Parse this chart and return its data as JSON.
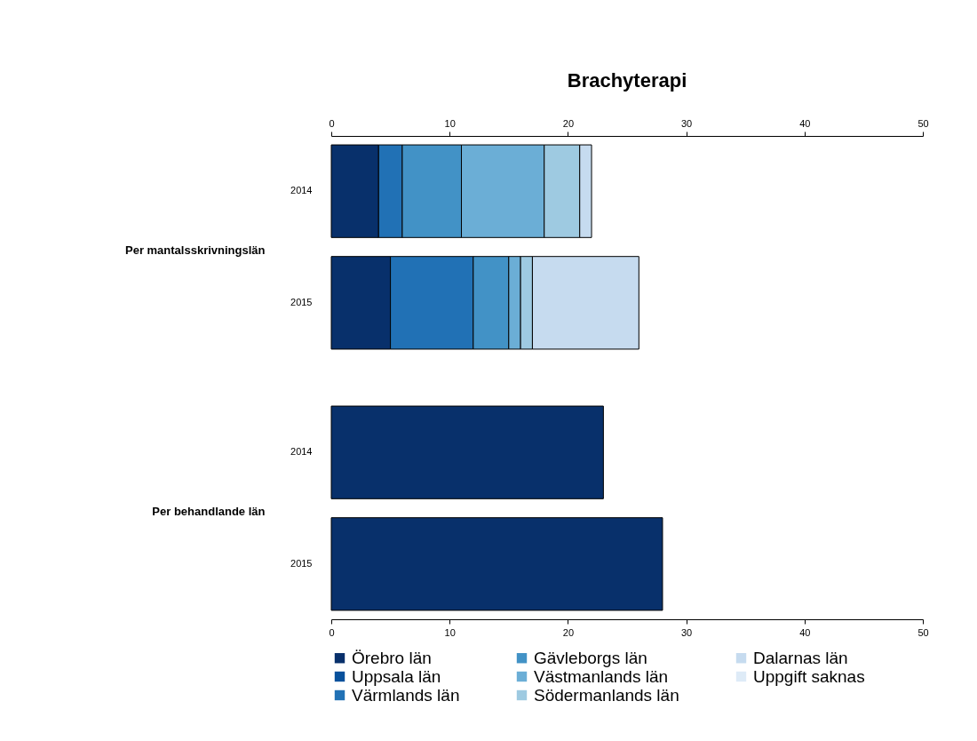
{
  "chart_data": [
    {
      "type": "bar",
      "title": "Brachyterapi",
      "orientation": "horizontal",
      "stacked": true,
      "ylabel": "Per mantalsskrivningslän",
      "categories": [
        "2014",
        "2015"
      ],
      "xlim": [
        0,
        50
      ],
      "xticks": [
        0,
        10,
        20,
        30,
        40,
        50
      ],
      "legend": "bottom",
      "series": [
        {
          "name": "Örebro län",
          "color": "#08306b",
          "values": [
            4,
            5
          ]
        },
        {
          "name": "Uppsala län",
          "color": "#08519c",
          "values": [
            null,
            null
          ]
        },
        {
          "name": "Värmlands län",
          "color": "#2171b5",
          "values": [
            2,
            7
          ]
        },
        {
          "name": "Gävleborgs län",
          "color": "#4292c6",
          "values": [
            5,
            3
          ]
        },
        {
          "name": "Västmanlands län",
          "color": "#6baed6",
          "values": [
            7,
            1
          ]
        },
        {
          "name": "Södermanlands län",
          "color": "#9ecae1",
          "values": [
            3,
            1
          ]
        },
        {
          "name": "Dalarnas län",
          "color": "#c6dbef",
          "values": [
            1,
            9
          ]
        },
        {
          "name": "Uppgift saknas",
          "color": "#deebf7",
          "values": [
            null,
            null
          ]
        }
      ]
    },
    {
      "type": "bar",
      "orientation": "horizontal",
      "stacked": true,
      "ylabel": "Per behandlande län",
      "categories": [
        "2014",
        "2015"
      ],
      "xlim": [
        0,
        50
      ],
      "xticks": [
        0,
        10,
        20,
        30,
        40,
        50
      ],
      "series": [
        {
          "name": "Örebro län",
          "color": "#08306b",
          "values": [
            23,
            28
          ]
        }
      ]
    }
  ]
}
